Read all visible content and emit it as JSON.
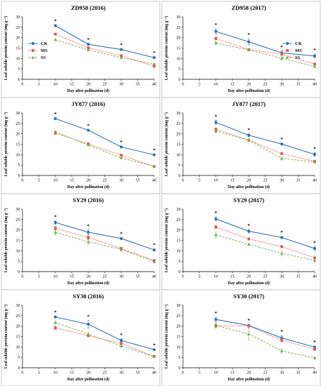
{
  "legend": [
    {
      "name": "CK",
      "color": "#2e75b6",
      "marker": "circle",
      "dash": "solid"
    },
    {
      "name": "MS",
      "color": "#e05a4f",
      "marker": "square",
      "dash": "dotted"
    },
    {
      "name": "SS",
      "color": "#70ad47",
      "marker": "triangle",
      "dash": "dashed"
    }
  ],
  "chart_data": [
    {
      "type": "line",
      "title": "ZD958 (2016)",
      "xlabel": "Day after pollination (d)",
      "ylabel": "Leaf soluble protein content (mg g⁻¹)",
      "xlim": [
        0,
        40
      ],
      "ylim": [
        0,
        30
      ],
      "xticks": [
        0,
        5,
        10,
        15,
        20,
        25,
        30,
        35,
        40
      ],
      "yticks": [
        0,
        5,
        10,
        15,
        20,
        25,
        30
      ],
      "x": [
        10,
        20,
        30,
        40
      ],
      "significance": [
        "*",
        "*",
        "*",
        "*"
      ],
      "legend_shown": true,
      "legend_position": "left",
      "series": [
        {
          "name": "CK",
          "values": [
            25.8,
            16.8,
            14.3,
            10.4
          ],
          "errors": [
            0.3,
            0.4,
            0.3,
            0.4
          ]
        },
        {
          "name": "MS",
          "values": [
            21.7,
            15.1,
            11.3,
            6.3
          ],
          "errors": [
            0.3,
            0.3,
            0.3,
            0.3
          ]
        },
        {
          "name": "SS",
          "values": [
            19.0,
            14.1,
            10.4,
            7.4
          ],
          "errors": [
            0.3,
            0.3,
            0.3,
            0.3
          ]
        }
      ]
    },
    {
      "type": "line",
      "title": "ZD958 (2017)",
      "xlabel": "Day after pollination (d)",
      "ylabel": "Leaf soluble protein content (mg g⁻¹)",
      "xlim": [
        0,
        40
      ],
      "ylim": [
        0,
        30
      ],
      "xticks": [
        0,
        5,
        10,
        15,
        20,
        25,
        30,
        35,
        40
      ],
      "yticks": [
        0,
        5,
        10,
        15,
        20,
        25,
        30
      ],
      "x": [
        10,
        20,
        30,
        40
      ],
      "significance": [
        "*",
        "*",
        "*",
        "*"
      ],
      "legend_shown": true,
      "legend_position": "right",
      "series": [
        {
          "name": "CK",
          "values": [
            23.0,
            18.0,
            12.7,
            11.2
          ],
          "errors": [
            1.2,
            1.5,
            0.9,
            1.0
          ]
        },
        {
          "name": "MS",
          "values": [
            19.6,
            14.3,
            12.1,
            7.3
          ],
          "errors": [
            0.6,
            0.5,
            0.6,
            0.4
          ]
        },
        {
          "name": "SS",
          "values": [
            17.5,
            14.1,
            10.1,
            6.2
          ],
          "errors": [
            0.8,
            0.6,
            1.0,
            0.6
          ]
        }
      ]
    },
    {
      "type": "line",
      "title": "JY877 (2016)",
      "xlabel": "Day after pollination (d)",
      "ylabel": "Leaf soluble protein content (mg g⁻¹)",
      "xlim": [
        0,
        40
      ],
      "ylim": [
        0,
        30
      ],
      "xticks": [
        0,
        5,
        10,
        15,
        20,
        25,
        30,
        35,
        40
      ],
      "yticks": [
        0,
        5,
        10,
        15,
        20,
        25,
        30
      ],
      "x": [
        10,
        20,
        30,
        40
      ],
      "significance": [
        "*",
        "*",
        "*",
        "*"
      ],
      "legend_shown": false,
      "series": [
        {
          "name": "CK",
          "values": [
            27.3,
            21.7,
            13.7,
            9.9
          ],
          "errors": [
            0.4,
            0.3,
            0.4,
            0.3
          ]
        },
        {
          "name": "MS",
          "values": [
            20.3,
            15.2,
            9.7,
            4.3
          ],
          "errors": [
            0.4,
            0.3,
            0.3,
            0.3
          ]
        },
        {
          "name": "SS",
          "values": [
            21.0,
            14.6,
            8.4,
            4.4
          ],
          "errors": [
            0.5,
            0.4,
            0.3,
            0.3
          ]
        }
      ]
    },
    {
      "type": "line",
      "title": "JY877 (2017)",
      "xlabel": "Day after pollination (d)",
      "ylabel": "Leaf soluble protein content (mg g⁻¹)",
      "xlim": [
        0,
        40
      ],
      "ylim": [
        0,
        30
      ],
      "xticks": [
        0,
        5,
        10,
        15,
        20,
        25,
        30,
        35,
        40
      ],
      "yticks": [
        0,
        5,
        10,
        15,
        20,
        25,
        30
      ],
      "x": [
        10,
        20,
        30,
        40
      ],
      "significance": [
        "*",
        "*",
        "*",
        "*"
      ],
      "legend_shown": false,
      "series": [
        {
          "name": "CK",
          "values": [
            25.5,
            19.3,
            15.1,
            10.1
          ],
          "errors": [
            1.0,
            0.7,
            0.4,
            0.9
          ]
        },
        {
          "name": "MS",
          "values": [
            22.2,
            17.0,
            10.5,
            6.8
          ],
          "errors": [
            0.6,
            0.5,
            0.5,
            0.5
          ]
        },
        {
          "name": "SS",
          "values": [
            21.3,
            16.9,
            8.2,
            6.5
          ],
          "errors": [
            0.7,
            0.5,
            0.8,
            0.6
          ]
        }
      ]
    },
    {
      "type": "line",
      "title": "SY29 (2016)",
      "xlabel": "Day after pollination (d)",
      "ylabel": "Leaf soluble protein content (mg g⁻¹)",
      "xlim": [
        0,
        40
      ],
      "ylim": [
        0,
        30
      ],
      "xticks": [
        0,
        5,
        10,
        15,
        20,
        25,
        30,
        35,
        40
      ],
      "yticks": [
        0,
        5,
        10,
        15,
        20,
        25,
        30
      ],
      "x": [
        10,
        20,
        30,
        40
      ],
      "significance": [
        "*",
        "*",
        "*",
        "*"
      ],
      "legend_shown": false,
      "series": [
        {
          "name": "CK",
          "values": [
            23.6,
            18.9,
            15.9,
            10.4
          ],
          "errors": [
            0.8,
            1.2,
            0.5,
            0.5
          ]
        },
        {
          "name": "MS",
          "values": [
            20.8,
            16.4,
            11.1,
            5.3
          ],
          "errors": [
            1.0,
            0.8,
            0.6,
            0.5
          ]
        },
        {
          "name": "SS",
          "values": [
            18.8,
            14.3,
            10.7,
            4.8
          ],
          "errors": [
            1.2,
            1.1,
            0.8,
            0.6
          ]
        }
      ]
    },
    {
      "type": "line",
      "title": "SY29 (2017)",
      "xlabel": "Day after pollination (d)",
      "ylabel": "Leaf soluble protein content (mg g⁻¹)",
      "xlim": [
        0,
        40
      ],
      "ylim": [
        0,
        30
      ],
      "xticks": [
        0,
        5,
        10,
        15,
        20,
        25,
        30,
        35,
        40
      ],
      "yticks": [
        0,
        5,
        10,
        15,
        20,
        25,
        30
      ],
      "x": [
        10,
        20,
        30,
        40
      ],
      "significance": [
        "*",
        "*",
        "*",
        "*"
      ],
      "legend_shown": false,
      "series": [
        {
          "name": "CK",
          "values": [
            25.3,
            19.4,
            16.4,
            11.1
          ],
          "errors": [
            1.0,
            0.9,
            0.6,
            0.9
          ]
        },
        {
          "name": "MS",
          "values": [
            21.4,
            15.7,
            12.0,
            6.6
          ],
          "errors": [
            0.8,
            0.5,
            0.5,
            0.5
          ]
        },
        {
          "name": "SS",
          "values": [
            17.7,
            13.1,
            8.8,
            5.4
          ],
          "errors": [
            1.4,
            0.6,
            1.3,
            0.6
          ]
        }
      ]
    },
    {
      "type": "line",
      "title": "SY30 (2016)",
      "xlabel": "Day after pollination (d)",
      "ylabel": "Leaf soluble protein content (mg g⁻¹)",
      "xlim": [
        0,
        40
      ],
      "ylim": [
        0,
        30
      ],
      "xticks": [
        0,
        5,
        10,
        15,
        20,
        25,
        30,
        35,
        40
      ],
      "yticks": [
        0,
        5,
        10,
        15,
        20,
        25,
        30
      ],
      "x": [
        10,
        20,
        30,
        40
      ],
      "significance": [
        "*",
        "*",
        "*",
        "*"
      ],
      "legend_shown": false,
      "series": [
        {
          "name": "CK",
          "values": [
            24.4,
            20.9,
            13.1,
            8.7
          ],
          "errors": [
            0.4,
            1.8,
            0.8,
            0.3
          ]
        },
        {
          "name": "MS",
          "values": [
            19.2,
            15.4,
            11.7,
            5.5
          ],
          "errors": [
            0.9,
            0.5,
            0.5,
            0.4
          ]
        },
        {
          "name": "SS",
          "values": [
            21.7,
            16.2,
            10.5,
            5.3
          ],
          "errors": [
            0.7,
            0.8,
            0.7,
            0.4
          ]
        }
      ]
    },
    {
      "type": "line",
      "title": "SY30 (2017)",
      "xlabel": "Day after pollination (d)",
      "ylabel": "Leaf soluble protein content (mg g⁻¹)",
      "xlim": [
        0,
        40
      ],
      "ylim": [
        0,
        30
      ],
      "xticks": [
        0,
        5,
        10,
        15,
        20,
        25,
        30,
        35,
        40
      ],
      "yticks": [
        0,
        5,
        10,
        15,
        20,
        25,
        30
      ],
      "x": [
        10,
        20,
        30,
        40
      ],
      "significance": [
        "*",
        "*",
        "*",
        "*"
      ],
      "legend_shown": false,
      "series": [
        {
          "name": "CK",
          "values": [
            23.2,
            20.3,
            14.3,
            9.9
          ],
          "errors": [
            1.0,
            0.6,
            1.2,
            0.6
          ]
        },
        {
          "name": "MS",
          "values": [
            20.2,
            20.0,
            13.2,
            8.9
          ],
          "errors": [
            0.9,
            0.5,
            0.9,
            0.6
          ]
        },
        {
          "name": "SS",
          "values": [
            20.3,
            16.2,
            8.1,
            4.7
          ],
          "errors": [
            1.3,
            2.9,
            1.0,
            0.5
          ]
        }
      ]
    }
  ]
}
